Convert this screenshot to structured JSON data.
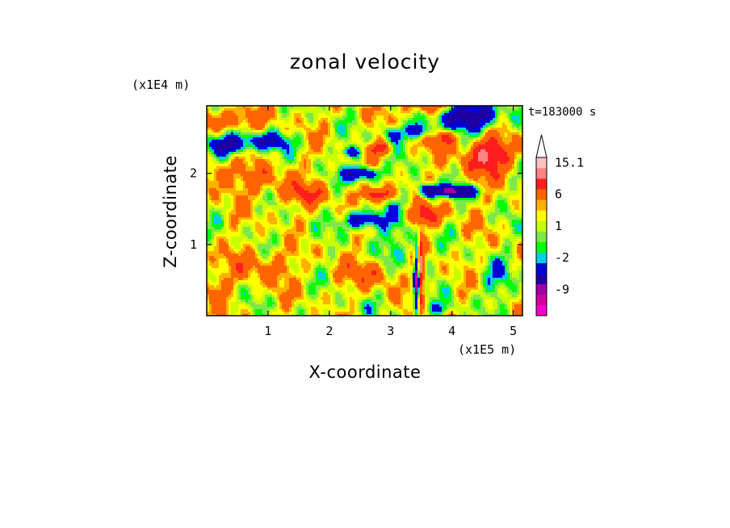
{
  "chart_data": {
    "type": "heatmap",
    "title": "zonal velocity",
    "xlabel": "X-coordinate",
    "ylabel": "Z-coordinate",
    "x_scale_label": "(x1E5 m)",
    "y_scale_label": "(x1E4 m)",
    "time_label": "t=183000 s",
    "xlim": [
      0,
      5.15
    ],
    "ylim": [
      0,
      2.95
    ],
    "x_ticks": [
      1,
      2,
      3,
      4,
      5
    ],
    "y_ticks": [
      1,
      2
    ],
    "colorbar": {
      "levels": [
        -15,
        -12,
        -9,
        -6,
        -3,
        -2,
        -1,
        0,
        1,
        2,
        3,
        6,
        9,
        12,
        15.1
      ],
      "tick_labels": [
        "15.1",
        "6",
        "1",
        "-2",
        "-9"
      ],
      "tick_values": [
        15.1,
        6,
        1,
        -2,
        -9
      ],
      "colors": [
        "#ff00c8",
        "#d0009e",
        "#a000a8",
        "#1e00a0",
        "#0000d8",
        "#00cfe0",
        "#00ff00",
        "#7ee84a",
        "#c8ff00",
        "#ffff00",
        "#ffb000",
        "#ff6400",
        "#ff1e1e",
        "#ff8484",
        "#ffc0c0"
      ],
      "overflow_arrow": "top"
    },
    "features": [
      {
        "x": 0.3,
        "z": 2.4,
        "value": -8,
        "rx": 0.4,
        "rz": 0.15
      },
      {
        "x": 1.0,
        "z": 2.45,
        "value": -6,
        "rx": 0.4,
        "rz": 0.12
      },
      {
        "x": 0.35,
        "z": 2.75,
        "value": 5,
        "rx": 0.5,
        "rz": 0.15
      },
      {
        "x": 0.2,
        "z": 2.0,
        "value": 4,
        "rx": 0.3,
        "rz": 0.2
      },
      {
        "x": 0.9,
        "z": 1.9,
        "value": 3,
        "rx": 0.5,
        "rz": 0.2
      },
      {
        "x": 1.6,
        "z": 1.7,
        "value": 4,
        "rx": 0.4,
        "rz": 0.15
      },
      {
        "x": 2.55,
        "z": 1.35,
        "value": -9,
        "rx": 0.3,
        "rz": 0.12
      },
      {
        "x": 2.55,
        "z": 2.0,
        "value": -9,
        "rx": 0.3,
        "rz": 0.1
      },
      {
        "x": 2.35,
        "z": 2.3,
        "value": -7,
        "rx": 0.15,
        "rz": 0.08
      },
      {
        "x": 2.8,
        "z": 1.7,
        "value": 7,
        "rx": 0.3,
        "rz": 0.1
      },
      {
        "x": 2.8,
        "z": 2.35,
        "value": 6,
        "rx": 0.2,
        "rz": 0.1
      },
      {
        "x": 3.05,
        "z": 2.55,
        "value": -7,
        "rx": 0.15,
        "rz": 0.12
      },
      {
        "x": 3.45,
        "z": 2.6,
        "value": -8,
        "rx": 0.15,
        "rz": 0.1
      },
      {
        "x": 3.55,
        "z": 2.95,
        "value": 6,
        "rx": 0.3,
        "rz": 0.12
      },
      {
        "x": 4.3,
        "z": 2.8,
        "value": -10,
        "rx": 0.5,
        "rz": 0.2
      },
      {
        "x": 3.9,
        "z": 2.5,
        "value": 6,
        "rx": 0.2,
        "rz": 0.1
      },
      {
        "x": 4.6,
        "z": 2.25,
        "value": 8,
        "rx": 0.4,
        "rz": 0.25
      },
      {
        "x": 4.05,
        "z": 1.75,
        "value": -10,
        "rx": 0.35,
        "rz": 0.08
      },
      {
        "x": 3.6,
        "z": 1.75,
        "value": -9,
        "rx": 0.15,
        "rz": 0.1
      },
      {
        "x": 3.55,
        "z": 1.4,
        "value": 7,
        "rx": 0.25,
        "rz": 0.15
      },
      {
        "x": 3.1,
        "z": 1.1,
        "value": -3,
        "rx": 0.3,
        "rz": 0.5
      },
      {
        "x": 3.42,
        "z": 0.5,
        "value": -12,
        "rx": 0.04,
        "rz": 0.45
      },
      {
        "x": 3.5,
        "z": 0.6,
        "value": 9,
        "rx": 0.04,
        "rz": 0.4
      },
      {
        "x": 4.7,
        "z": 0.5,
        "value": -3,
        "rx": 0.3,
        "rz": 0.3
      },
      {
        "x": 3.8,
        "z": 0.1,
        "value": -3,
        "rx": 0.3,
        "rz": 0.1
      },
      {
        "x": 2.7,
        "z": 0.6,
        "value": 4,
        "rx": 0.4,
        "rz": 0.2
      },
      {
        "x": 0.9,
        "z": 0.7,
        "value": 3,
        "rx": 0.5,
        "rz": 0.25
      },
      {
        "x": 1.5,
        "z": 1.1,
        "value": -1,
        "rx": 0.4,
        "rz": 0.15
      },
      {
        "x": 0.1,
        "z": 0.4,
        "value": 3,
        "rx": 0.2,
        "rz": 0.2
      },
      {
        "x": 2.3,
        "z": 0.1,
        "value": -1,
        "rx": 0.5,
        "rz": 0.1
      }
    ]
  }
}
